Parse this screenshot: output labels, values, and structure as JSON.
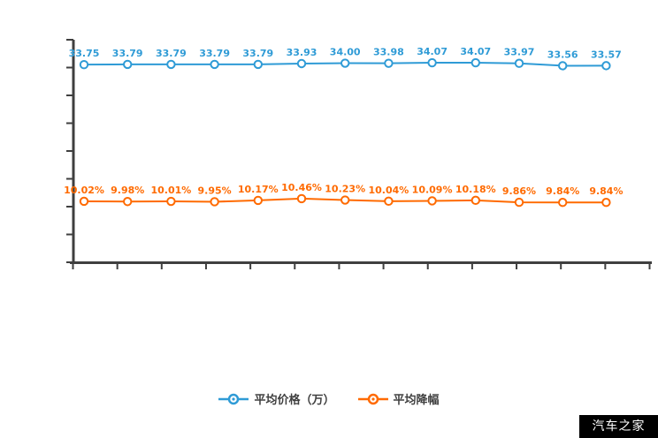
{
  "chart_data": {
    "type": "line",
    "title": "",
    "xlabel": "",
    "ylabel": "",
    "grid": false,
    "legend_position": "bottom",
    "num_points": 13,
    "x_axis": {
      "labels_visible": false,
      "tick_count": 14
    },
    "y_axis": {
      "labels_visible": false,
      "tick_count": 9
    },
    "series": [
      {
        "name": "平均价格（万）",
        "color": "#2f9bd6",
        "values": [
          33.75,
          33.79,
          33.79,
          33.79,
          33.79,
          33.93,
          34.0,
          33.98,
          34.07,
          34.07,
          33.97,
          33.56,
          33.57
        ],
        "labels": [
          "33.75",
          "33.79",
          "33.79",
          "33.79",
          "33.79",
          "33.93",
          "34.00",
          "33.98",
          "34.07",
          "34.07",
          "33.97",
          "33.56",
          "33.57"
        ]
      },
      {
        "name": "平均降幅",
        "color": "#ff6a00",
        "values": [
          10.02,
          9.98,
          10.01,
          9.95,
          10.17,
          10.46,
          10.23,
          10.04,
          10.09,
          10.18,
          9.86,
          9.84,
          9.84
        ],
        "labels": [
          "10.02%",
          "9.98%",
          "10.01%",
          "9.95%",
          "10.17%",
          "10.46%",
          "10.23%",
          "10.04%",
          "10.09%",
          "10.18%",
          "9.86%",
          "9.84%",
          "9.84%"
        ]
      }
    ]
  },
  "legend": {
    "items": [
      {
        "label": "平均价格（万）",
        "color": "#2f9bd6"
      },
      {
        "label": "平均降幅",
        "color": "#ff6a00"
      }
    ]
  },
  "watermark": {
    "text": "汽车之家",
    "background": "#000000",
    "color": "#ffffff"
  },
  "colors": {
    "axis": "#3f3f3f",
    "background": "#ffffff"
  }
}
